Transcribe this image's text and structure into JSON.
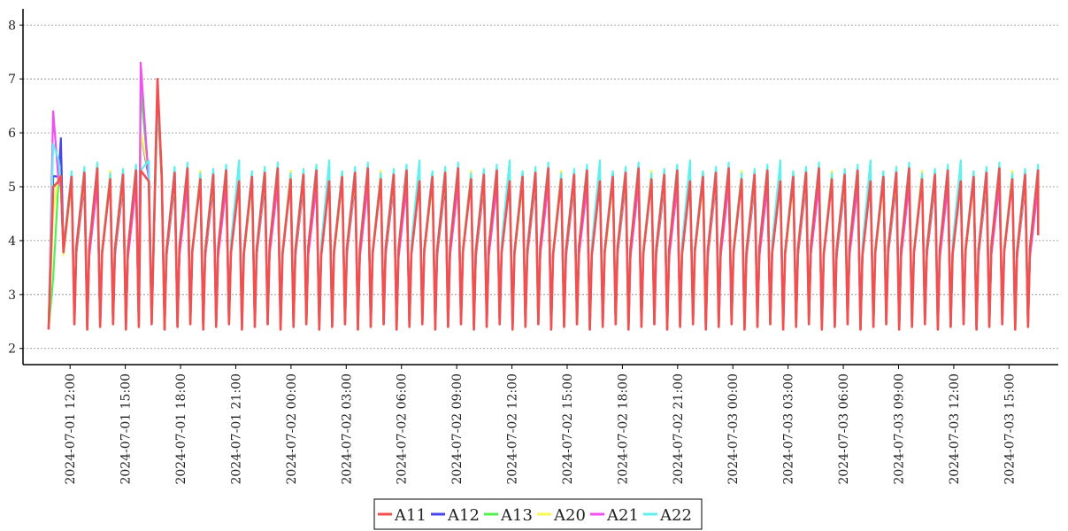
{
  "chart_data": {
    "type": "line",
    "title": "",
    "xlabel": "",
    "ylabel": "",
    "ylim": [
      1.7,
      8.3
    ],
    "yticks": [
      2,
      3,
      4,
      5,
      6,
      7,
      8
    ],
    "x_range": [
      "2024-07-01 10:30",
      "2024-07-03 16:40"
    ],
    "x_ticks": [
      "2024-07-01 12:00",
      "2024-07-01 15:00",
      "2024-07-01 18:00",
      "2024-07-01 21:00",
      "2024-07-02 00:00",
      "2024-07-02 03:00",
      "2024-07-02 06:00",
      "2024-07-02 09:00",
      "2024-07-02 12:00",
      "2024-07-02 15:00",
      "2024-07-02 18:00",
      "2024-07-02 21:00",
      "2024-07-03 00:00",
      "2024-07-03 03:00",
      "2024-07-03 06:00",
      "2024-07-03 09:00",
      "2024-07-03 12:00",
      "2024-07-03 15:00"
    ],
    "grid": "horizontal dotted",
    "legend_position": "bottom-center",
    "series": [
      {
        "name": "A11",
        "color": "#f05050"
      },
      {
        "name": "A12",
        "color": "#4848e8"
      },
      {
        "name": "A13",
        "color": "#50f050"
      },
      {
        "name": "A20",
        "color": "#f8f850"
      },
      {
        "name": "A21",
        "color": "#f050f0"
      },
      {
        "name": "A22",
        "color": "#60f0f0"
      }
    ],
    "cycles": {
      "start": "2024-07-01 10:50",
      "period_minutes": 42,
      "low": 2.4,
      "high": 5.2,
      "end": "2024-07-03 16:35",
      "last_value": 4.1
    },
    "spikes": [
      {
        "time": "2024-07-01 11:05",
        "A11": 5.0,
        "A12": 5.2,
        "A13": 3.3,
        "A20": 4.5,
        "A21": 6.4,
        "A22": 5.8
      },
      {
        "time": "2024-07-01 11:30",
        "A11": 5.2,
        "A12": 5.9,
        "A13": 5.0,
        "A20": 5.0,
        "A21": 5.0,
        "A22": 5.0
      },
      {
        "time": "2024-07-01 15:50",
        "A11": 5.3,
        "A12": 6.0,
        "A13": 6.8,
        "A20": 6.0,
        "A21": 7.3,
        "A22": 5.3
      },
      {
        "time": "2024-07-01 16:45",
        "A11": 7.0,
        "A12": 6.8,
        "A13": 6.6,
        "A20": 6.5,
        "A21": 6.6,
        "A22": 6.5
      }
    ]
  }
}
